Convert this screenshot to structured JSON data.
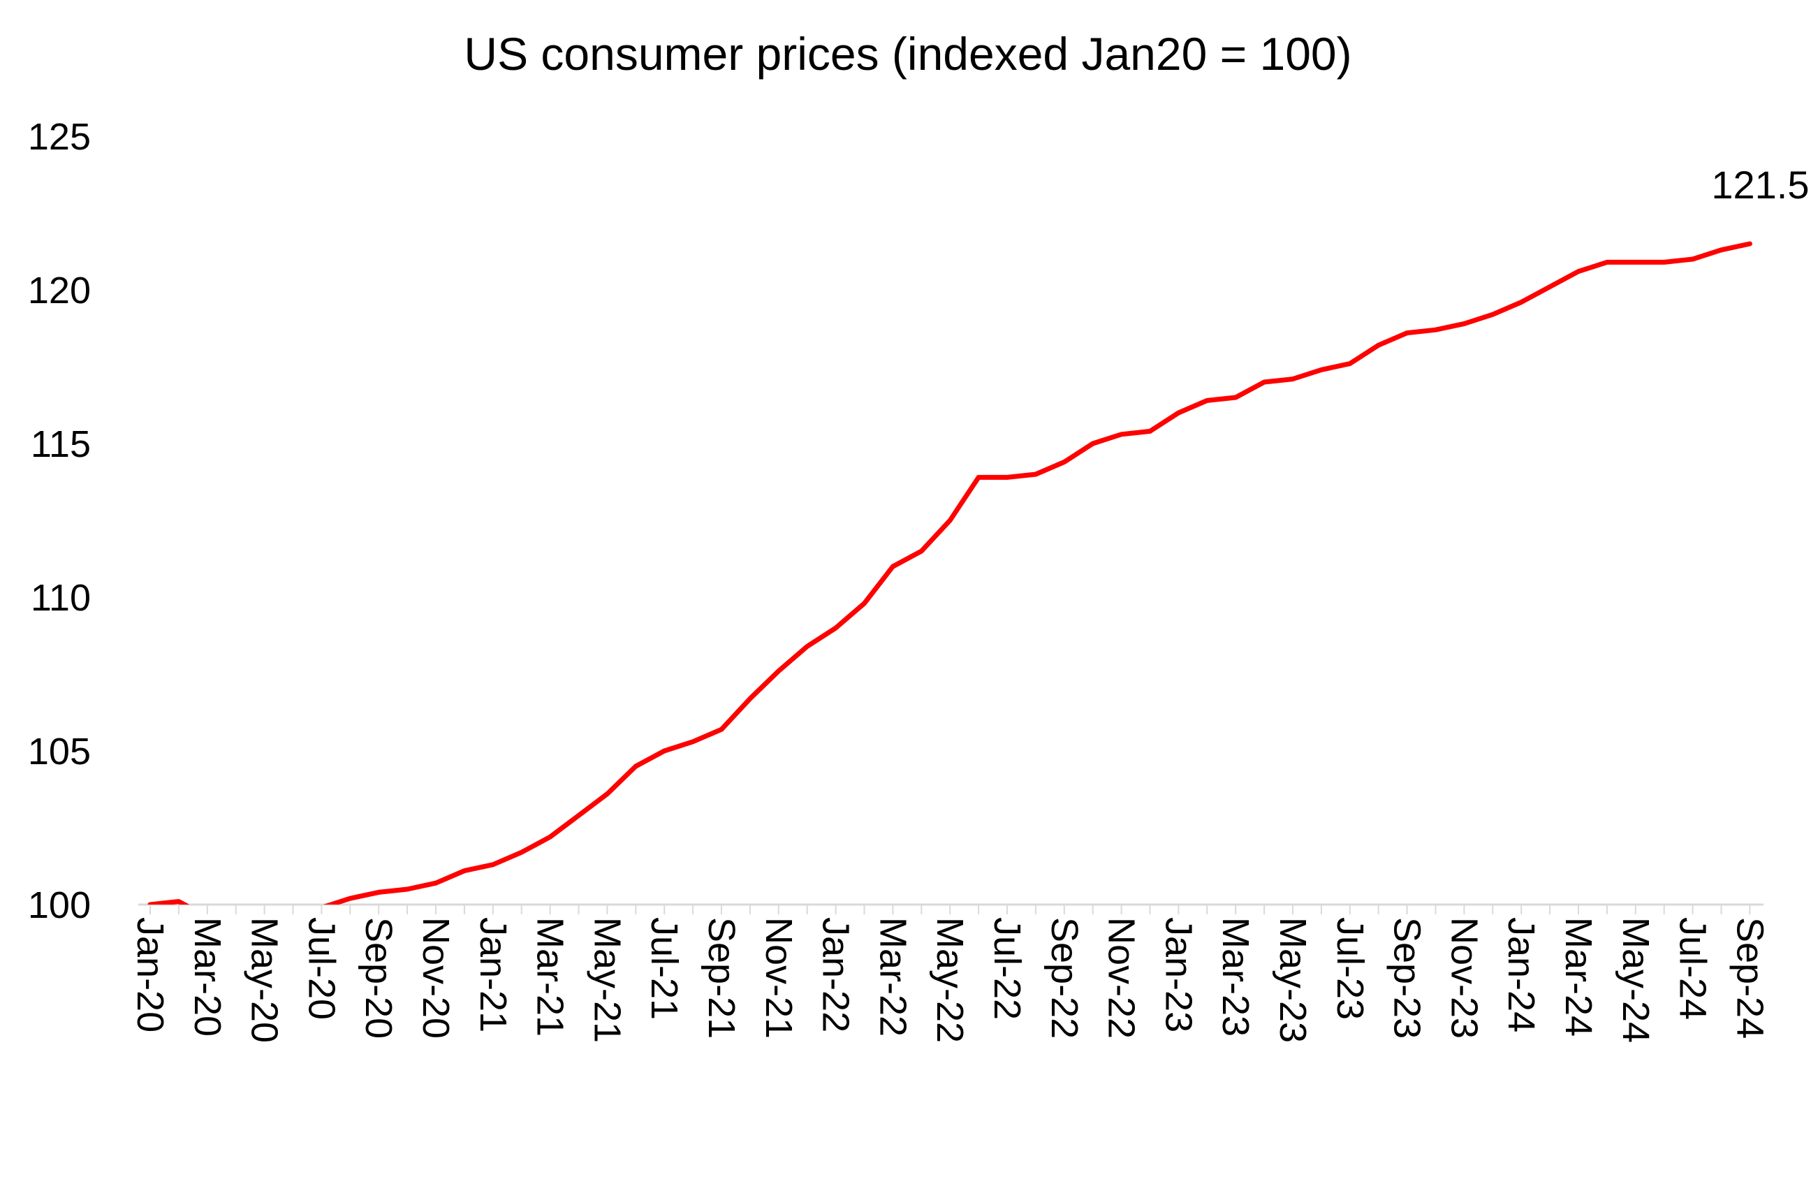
{
  "chart_data": {
    "type": "line",
    "title": "US consumer prices (indexed Jan20 = 100)",
    "xlabel": "",
    "ylabel": "",
    "ylim": [
      100,
      125
    ],
    "yticks": [
      100,
      105,
      110,
      115,
      120,
      125
    ],
    "xticks": [
      "Jan-20",
      "Mar-20",
      "May-20",
      "Jul-20",
      "Sep-20",
      "Nov-20",
      "Jan-21",
      "Mar-21",
      "May-21",
      "Jul-21",
      "Sep-21",
      "Nov-21",
      "Jan-22",
      "Mar-22",
      "May-22",
      "Jul-22",
      "Sep-22",
      "Nov-22",
      "Jan-23",
      "Mar-23",
      "May-23",
      "Jul-23",
      "Sep-23",
      "Nov-23",
      "Jan-24",
      "Mar-24",
      "May-24",
      "Jul-24",
      "Sep-24"
    ],
    "grid": false,
    "legend": "none",
    "line_color": "#ff0000",
    "x": [
      "Jan-20",
      "Feb-20",
      "Mar-20",
      "Apr-20",
      "May-20",
      "Jun-20",
      "Jul-20",
      "Aug-20",
      "Sep-20",
      "Oct-20",
      "Nov-20",
      "Dec-20",
      "Jan-21",
      "Feb-21",
      "Mar-21",
      "Apr-21",
      "May-21",
      "Jun-21",
      "Jul-21",
      "Aug-21",
      "Sep-21",
      "Oct-21",
      "Nov-21",
      "Dec-21",
      "Jan-22",
      "Feb-22",
      "Mar-22",
      "Apr-22",
      "May-22",
      "Jun-22",
      "Jul-22",
      "Aug-22",
      "Sep-22",
      "Oct-22",
      "Nov-22",
      "Dec-22",
      "Jan-23",
      "Feb-23",
      "Mar-23",
      "Apr-23",
      "May-23",
      "Jun-23",
      "Jul-23",
      "Aug-23",
      "Sep-23",
      "Oct-23",
      "Nov-23",
      "Dec-23",
      "Jan-24",
      "Feb-24",
      "Mar-24",
      "Apr-24",
      "May-24",
      "Jun-24",
      "Jul-24",
      "Aug-24",
      "Sep-24"
    ],
    "series": [
      {
        "values": [
          100.0,
          100.1,
          99.6,
          98.9,
          98.8,
          99.4,
          99.9,
          100.2,
          100.4,
          100.5,
          100.7,
          101.1,
          101.3,
          101.7,
          102.2,
          102.9,
          103.6,
          104.5,
          105.0,
          105.3,
          105.7,
          106.7,
          107.6,
          108.4,
          109.0,
          109.8,
          111.0,
          111.5,
          112.5,
          113.9,
          113.9,
          114.0,
          114.4,
          115.0,
          115.3,
          115.4,
          116.0,
          116.4,
          116.5,
          117.0,
          117.1,
          117.4,
          117.6,
          118.2,
          118.6,
          118.7,
          118.9,
          119.2,
          119.6,
          120.1,
          120.6,
          120.9,
          120.9,
          120.9,
          121.0,
          121.3,
          121.5
        ]
      }
    ],
    "annotations": [
      {
        "text": "121.5",
        "x": "Sep-24",
        "y": 121.5
      }
    ]
  }
}
